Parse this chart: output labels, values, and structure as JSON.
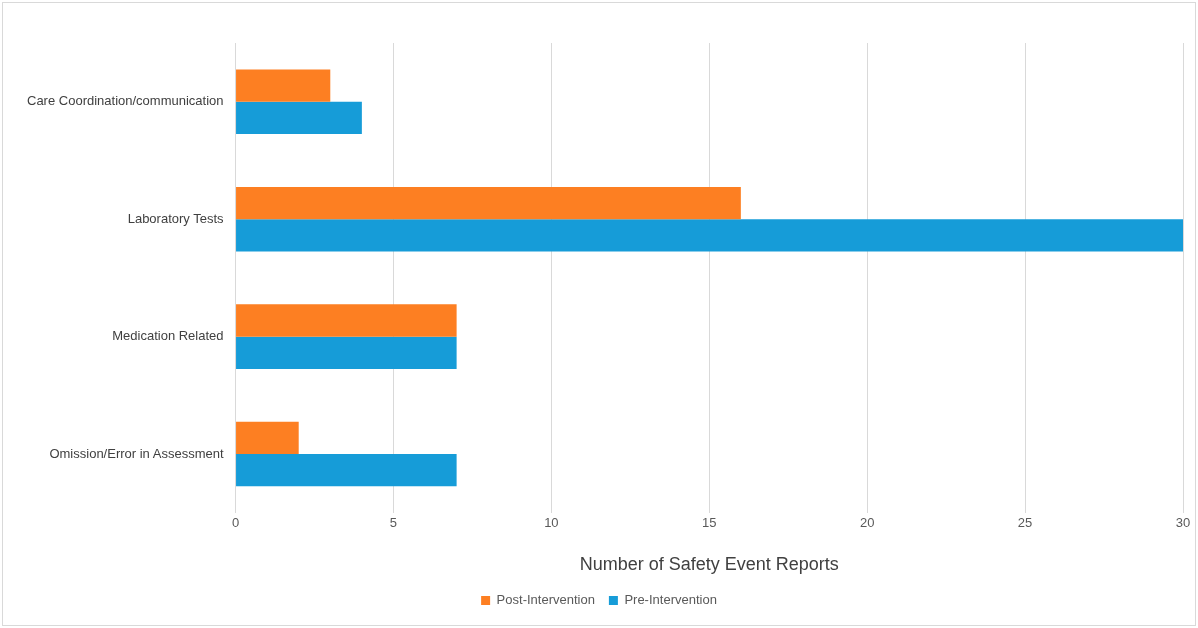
{
  "chart_data": {
    "type": "bar",
    "orientation": "horizontal",
    "xlabel": "Number of Safety Event Reports",
    "categories": [
      "Care Coordination/communication",
      "Laboratory Tests",
      "Medication Related",
      "Omission/Error in Assessment"
    ],
    "series": [
      {
        "name": "Post-Intervention",
        "color": "#fd7f22",
        "values": [
          3,
          16,
          7,
          2
        ]
      },
      {
        "name": "Pre-Intervention",
        "color": "#169cd8",
        "values": [
          4,
          30,
          7,
          7
        ]
      }
    ],
    "xlim": [
      0,
      30
    ],
    "xticks": [
      0,
      5,
      10,
      15,
      20,
      25,
      30
    ],
    "grid": "x",
    "legend": "bottom"
  }
}
